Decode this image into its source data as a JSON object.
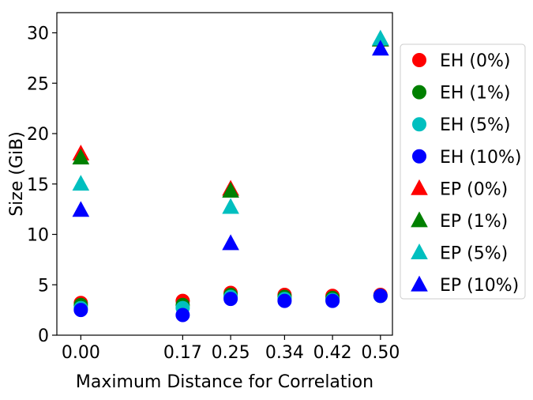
{
  "chart_data": {
    "type": "scatter",
    "title": "",
    "xlabel": "Maximum Distance for Correlation",
    "ylabel": "Size (GiB)",
    "xlim": [
      -0.04,
      0.52
    ],
    "ylim": [
      0,
      32
    ],
    "xticks": [
      0.0,
      0.17,
      0.25,
      0.34,
      0.42,
      0.5
    ],
    "xtick_labels": [
      "0.00",
      "0.17",
      "0.25",
      "0.34",
      "0.42",
      "0.50"
    ],
    "yticks": [
      0,
      5,
      10,
      15,
      20,
      25,
      30
    ],
    "ytick_labels": [
      "0",
      "5",
      "10",
      "15",
      "20",
      "25",
      "30"
    ],
    "grid": false,
    "legend_position": "right",
    "series": [
      {
        "name": "EH (0%)",
        "marker": "circle",
        "color": "#ff0000",
        "x": [
          0.0,
          0.17,
          0.25,
          0.34,
          0.42,
          0.5
        ],
        "y": [
          3.2,
          3.4,
          4.2,
          4.0,
          3.9,
          4.0
        ]
      },
      {
        "name": "EH (1%)",
        "marker": "circle",
        "color": "#008000",
        "x": [
          0.0,
          0.17,
          0.25,
          0.34,
          0.42,
          0.5
        ],
        "y": [
          3.0,
          3.0,
          4.0,
          3.8,
          3.7,
          3.9
        ]
      },
      {
        "name": "EH (5%)",
        "marker": "circle",
        "color": "#00bfbf",
        "x": [
          0.0,
          0.17,
          0.25,
          0.34,
          0.42,
          0.5
        ],
        "y": [
          2.7,
          2.7,
          3.8,
          3.6,
          3.5,
          3.9
        ]
      },
      {
        "name": "EH (10%)",
        "marker": "circle",
        "color": "#0000ff",
        "x": [
          0.0,
          0.17,
          0.25,
          0.34,
          0.42,
          0.5
        ],
        "y": [
          2.5,
          2.0,
          3.6,
          3.4,
          3.4,
          3.9
        ]
      },
      {
        "name": "EP (0%)",
        "marker": "triangle",
        "color": "#ff0000",
        "x": [
          0.0,
          0.25,
          0.5
        ],
        "y": [
          18.0,
          14.5,
          29.3
        ]
      },
      {
        "name": "EP (1%)",
        "marker": "triangle",
        "color": "#008000",
        "x": [
          0.0,
          0.25,
          0.5
        ],
        "y": [
          17.6,
          14.3,
          29.3
        ]
      },
      {
        "name": "EP (5%)",
        "marker": "triangle",
        "color": "#00bfbf",
        "x": [
          0.0,
          0.25,
          0.5
        ],
        "y": [
          15.0,
          12.7,
          29.4
        ]
      },
      {
        "name": "EP (10%)",
        "marker": "triangle",
        "color": "#0000ff",
        "x": [
          0.0,
          0.25,
          0.5
        ],
        "y": [
          12.4,
          9.1,
          28.4
        ]
      }
    ]
  }
}
